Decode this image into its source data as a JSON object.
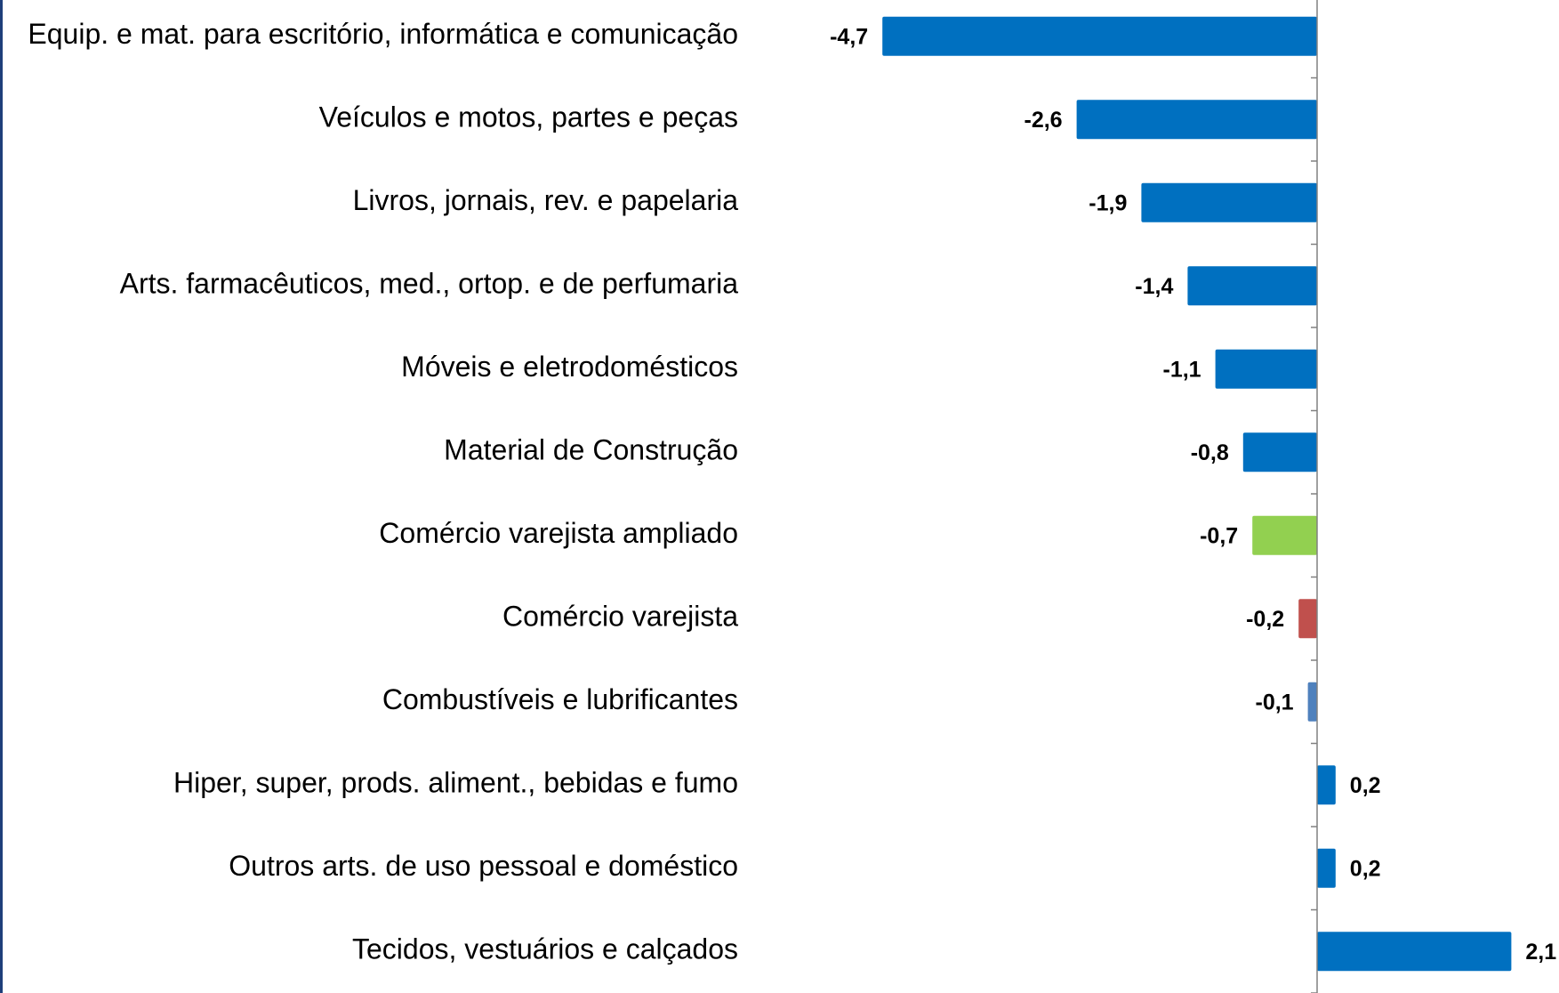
{
  "chart_data": {
    "type": "hbar",
    "categories": [
      "Equip. e mat. para escritório, informática e comunicação",
      "Veículos e motos, partes e peças",
      "Livros, jornais, rev. e papelaria",
      "Arts. farmacêuticos, med., ortop. e de perfumaria",
      "Móveis e eletrodomésticos",
      "Material de Construção",
      "Comércio varejista ampliado",
      "Comércio varejista",
      "Combustíveis e lubrificantes",
      "Hiper, super, prods. aliment., bebidas e fumo",
      "Outros arts. de uso pessoal e doméstico",
      "Tecidos, vestuários e calçados"
    ],
    "values": [
      -4.7,
      -2.6,
      -1.9,
      -1.4,
      -1.1,
      -0.8,
      -0.7,
      -0.2,
      -0.1,
      0.2,
      0.2,
      2.1
    ],
    "value_labels": [
      "-4,7",
      "-2,6",
      "-1,9",
      "-1,4",
      "-1,1",
      "-0,8",
      "-0,7",
      "-0,2",
      "-0,1",
      "0,2",
      "0,2",
      "2,1"
    ],
    "colors": [
      "#0070c0",
      "#0070c0",
      "#0070c0",
      "#0070c0",
      "#0070c0",
      "#0070c0",
      "#92d050",
      "#c0504d",
      "#4f81bd",
      "#0070c0",
      "#0070c0",
      "#0070c0"
    ],
    "xlim": [
      -5,
      2.5
    ]
  }
}
